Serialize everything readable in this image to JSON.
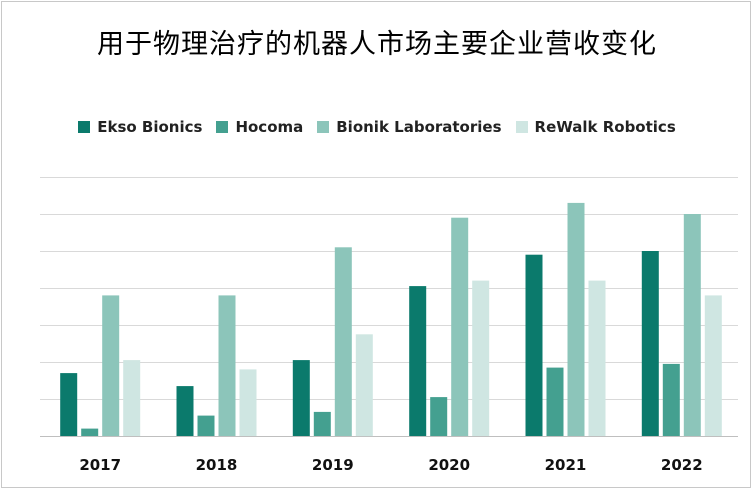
{
  "chart_data": {
    "type": "bar",
    "title": "用于物理治疗的机器人市场主要企业营收变化",
    "xlabel": "",
    "ylabel": "",
    "categories": [
      "2017",
      "2018",
      "2019",
      "2020",
      "2021",
      "2022"
    ],
    "series": [
      {
        "name": "Ekso Bionics",
        "color": "#0b7a6c",
        "values": [
          17,
          13.5,
          20.5,
          40.5,
          49,
          50
        ]
      },
      {
        "name": "Hocoma",
        "color": "#44a090",
        "values": [
          2,
          5.5,
          6.5,
          10.5,
          18.5,
          19.5
        ]
      },
      {
        "name": "Bionik Laboratories",
        "color": "#8cc5ba",
        "values": [
          38,
          38,
          51,
          59,
          63,
          60
        ]
      },
      {
        "name": "ReWalk Robotics",
        "color": "#cfe6e2",
        "values": [
          20.5,
          18,
          27.5,
          42,
          42,
          38
        ]
      }
    ],
    "ylim": [
      0,
      70
    ],
    "grid": true,
    "legend_position": "top",
    "y_tick_labels_visible": false
  }
}
